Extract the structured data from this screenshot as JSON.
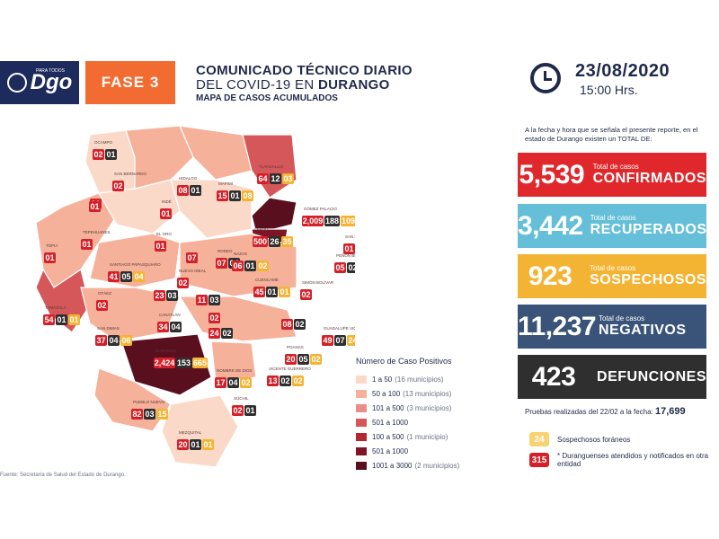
{
  "header": {
    "logo_small": "PARA TODOS",
    "logo_text": "Dgo",
    "fase": "FASE 3",
    "title_line1": "COMUNICADO TÉCNICO DIARIO",
    "title_line2_prefix": "DEL COVID-19 EN",
    "title_line2_bold": "DURANGO",
    "title_line3": "MAPA DE CASOS ACUMULADOS",
    "date": "23/08/2020",
    "time": "15:00 Hrs."
  },
  "intro": {
    "text": "A la fecha y hora que se señala el presente reporte, en el estado de Durango existen un TOTAL DE:"
  },
  "stats": [
    {
      "value": "5,539",
      "small": "Total de casos",
      "big": "CONFIRMADOS",
      "color": "#e0282c"
    },
    {
      "value": "3,442",
      "small": "Total de casos",
      "big": "RECUPERADOS",
      "color": "#65bfd8"
    },
    {
      "value": "923",
      "small": "Total de casos",
      "big": "SOSPECHOSOS",
      "color": "#f4b433"
    },
    {
      "value": "11,237",
      "small": "Total de casos",
      "big": "NEGATIVOS",
      "color": "#3a5479"
    },
    {
      "value": "423",
      "small": "",
      "big": "DEFUNCIONES",
      "color": "#2f2f2f"
    }
  ],
  "pruebas": {
    "label": "Pruebas realizadas del 22/02 a la fecha:",
    "value": "17,699"
  },
  "keys": [
    {
      "value": "24",
      "text": "Sospechosos foráneos"
    },
    {
      "value": "315",
      "text": "* Duranguenses atendidos y notificados en otra entidad"
    }
  ],
  "legend": {
    "title": "Número de Caso Positivos",
    "rows": [
      {
        "label": "1 a 50",
        "sub": "(16 municipios)",
        "color": "#fbd9c8"
      },
      {
        "label": "50 a 100",
        "sub": "(13 municipios)",
        "color": "#f5b19a"
      },
      {
        "label": "101 a 500",
        "sub": "(3 municipios)",
        "color": "#eb8d86"
      },
      {
        "label": "501 a 1000",
        "sub": "",
        "color": "#d6575a"
      },
      {
        "label": "100 a 500",
        "sub": "(1 municipio)",
        "color": "#b3272d"
      },
      {
        "label": "501 a 1000",
        "sub": "",
        "color": "#7c1626"
      },
      {
        "label": "1001 a 3000",
        "sub": "(2 municipios)",
        "color": "#5a0f1f"
      }
    ]
  },
  "source": "Fuente: Secretaría de Salud del Estado de Durango.",
  "municipalities": [
    {
      "name": "OCAMPO",
      "v": [
        "02",
        "01"
      ]
    },
    {
      "name": "SAN BERNARDO",
      "v": [
        "02"
      ]
    },
    {
      "name": "INDÉ",
      "v": [
        "01"
      ]
    },
    {
      "name": "HIDALGO",
      "v": [
        "08",
        "01"
      ]
    },
    {
      "name": "MAPIMÍ",
      "v": [
        "15",
        "01",
        "08"
      ]
    },
    {
      "name": "TLAHUALILO",
      "v": [
        "64",
        "12",
        "03"
      ]
    },
    {
      "name": "GÓMEZ PALACIO",
      "v": [
        "2,009",
        "188",
        "109"
      ]
    },
    {
      "name": "",
      "v": [
        "01"
      ]
    },
    {
      "name": "TEPEHUANES",
      "v": [
        "01"
      ]
    },
    {
      "name": "EL ORO",
      "v": [
        "01"
      ]
    },
    {
      "name": "TOPIA",
      "v": [
        "01"
      ]
    },
    {
      "name": "LERDO",
      "v": [
        "500",
        "26",
        "35"
      ]
    },
    {
      "name": "SAN LUIS DEL CORDERO",
      "v": [
        "01"
      ]
    },
    {
      "name": "RODEO",
      "v": [
        "07",
        "04"
      ]
    },
    {
      "name": "NAZAS",
      "v": [
        "06",
        "01",
        "02"
      ]
    },
    {
      "name": "PEÑÓN BLANCO",
      "v": [
        "05",
        "02"
      ]
    },
    {
      "name": "SANTIAGO PAPASQUIARO",
      "v": [
        "41",
        "05",
        "04"
      ]
    },
    {
      "name": "",
      "v": [
        "07"
      ]
    },
    {
      "name": "NUEVO IDEAL",
      "v": [
        "02"
      ]
    },
    {
      "name": "CUENCAMÉ",
      "v": [
        "45",
        "01",
        "01"
      ]
    },
    {
      "name": "SIMÓN BOLÍVAR",
      "v": [
        "02"
      ]
    },
    {
      "name": "",
      "v": [
        "23",
        "03"
      ]
    },
    {
      "name": "",
      "v": [
        "11",
        "03"
      ]
    },
    {
      "name": "OTÁEZ",
      "v": [
        "02"
      ]
    },
    {
      "name": "TAMAZULA",
      "v": [
        "54",
        "01",
        "01"
      ]
    },
    {
      "name": "CANATLÁN",
      "v": [
        "34",
        "04"
      ]
    },
    {
      "name": "",
      "v": [
        "02"
      ]
    },
    {
      "name": "",
      "v": [
        "24",
        "02"
      ]
    },
    {
      "name": "",
      "v": [
        "08",
        "02"
      ]
    },
    {
      "name": "GUADALUPE VICTORIA",
      "v": [
        "49",
        "07",
        "24"
      ]
    },
    {
      "name": "SAN DIMAS",
      "v": [
        "37",
        "04",
        "06"
      ]
    },
    {
      "name": "POANAS",
      "v": [
        "20",
        "05",
        "02"
      ]
    },
    {
      "name": "DURANGO",
      "v": [
        "2,424",
        "153",
        "665"
      ]
    },
    {
      "name": "NOMBRE DE DIOS",
      "v": [
        "17",
        "04",
        "02"
      ]
    },
    {
      "name": "VICENTE GUERRERO",
      "v": [
        "13",
        "02",
        "02"
      ]
    },
    {
      "name": "PUEBLO NUEVO",
      "v": [
        "82",
        "03",
        "15"
      ]
    },
    {
      "name": "SÚCHIL",
      "v": [
        "02",
        "01"
      ]
    },
    {
      "name": "MEZQUITAL",
      "v": [
        "20",
        "01",
        "01"
      ]
    },
    {
      "name": "",
      "v": [
        "01"
      ]
    }
  ]
}
